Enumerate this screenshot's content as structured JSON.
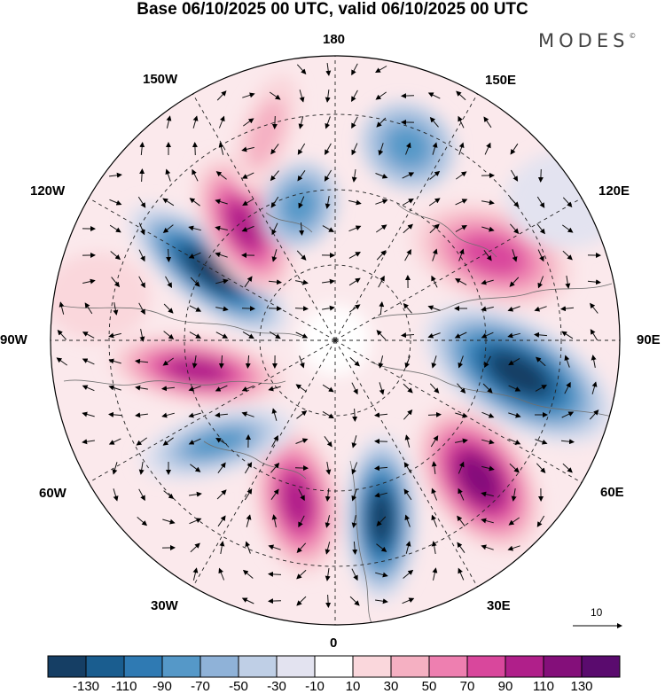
{
  "title": "Base 06/10/2025 00 UTC, valid 06/10/2025 00 UTC",
  "logo": "MODES",
  "logo_mark": "©",
  "longitude_labels": {
    "top": "180",
    "bottom": "0",
    "left": "90W",
    "right": "90E",
    "upper_left_1": "150W",
    "upper_left_2": "120W",
    "lower_left_1": "60W",
    "lower_left_2": "30W",
    "upper_right_1": "150E",
    "upper_right_2": "120E",
    "lower_right_1": "60E",
    "lower_right_2": "30E"
  },
  "reference_vector": {
    "label": "10"
  },
  "colorbar": {
    "ticks": [
      "-130",
      "-110",
      "-90",
      "-70",
      "-50",
      "-30",
      "-10",
      "10",
      "30",
      "50",
      "70",
      "90",
      "110",
      "130"
    ],
    "colors": [
      "#153e64",
      "#1a5d8f",
      "#2f7ab3",
      "#5598c8",
      "#8fb2d8",
      "#bfcfe6",
      "#e3e3f0",
      "#ffffff",
      "#fad7dc",
      "#f5b0c2",
      "#ee7fb0",
      "#d9479c",
      "#b01f8a",
      "#840f7a",
      "#5a0b6e"
    ]
  }
}
